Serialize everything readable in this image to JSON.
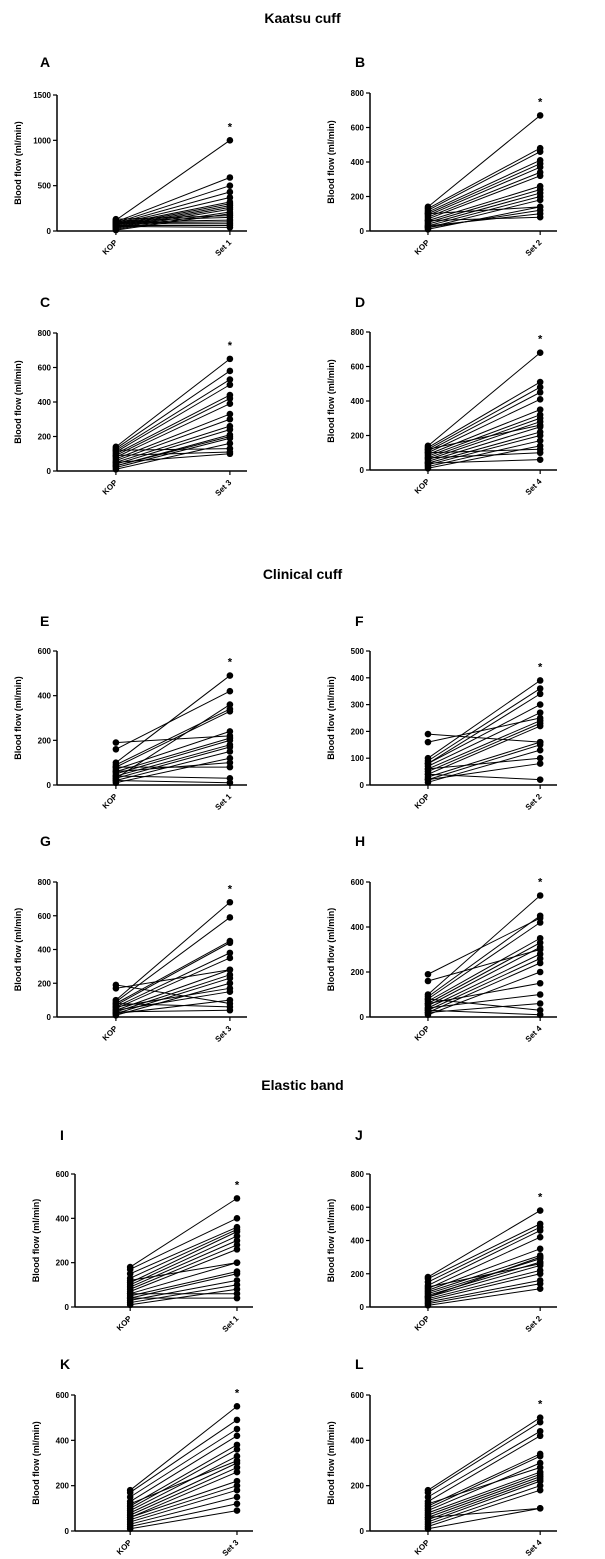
{
  "sections": [
    {
      "title": "Kaatsu cuff"
    },
    {
      "title": "Clinical cuff"
    },
    {
      "title": "Elastic band"
    }
  ],
  "chart_data": [
    {
      "panel": "A",
      "type": "line",
      "ylabel": "Blood flow (ml/min)",
      "categories": [
        "KOP",
        "Set 1"
      ],
      "ylim": [
        0,
        1500
      ],
      "yticks": [
        0,
        500,
        1000,
        1500
      ],
      "annotation": "*",
      "series": [
        [
          120,
          1000
        ],
        [
          100,
          590
        ],
        [
          90,
          500
        ],
        [
          80,
          430
        ],
        [
          75,
          370
        ],
        [
          70,
          320
        ],
        [
          60,
          300
        ],
        [
          50,
          280
        ],
        [
          40,
          260
        ],
        [
          30,
          240
        ],
        [
          20,
          210
        ],
        [
          10,
          190
        ],
        [
          130,
          170
        ],
        [
          110,
          150
        ],
        [
          100,
          120
        ],
        [
          90,
          100
        ],
        [
          80,
          80
        ],
        [
          60,
          60
        ],
        [
          50,
          40
        ]
      ]
    },
    {
      "panel": "B",
      "type": "line",
      "ylabel": "Blood flow (ml/min)",
      "categories": [
        "KOP",
        "Set 2"
      ],
      "ylim": [
        0,
        800
      ],
      "yticks": [
        0,
        200,
        400,
        600,
        800
      ],
      "annotation": "*",
      "series": [
        [
          140,
          670
        ],
        [
          130,
          480
        ],
        [
          120,
          460
        ],
        [
          110,
          410
        ],
        [
          100,
          390
        ],
        [
          90,
          370
        ],
        [
          80,
          340
        ],
        [
          70,
          320
        ],
        [
          60,
          260
        ],
        [
          50,
          240
        ],
        [
          40,
          220
        ],
        [
          30,
          200
        ],
        [
          20,
          180
        ],
        [
          10,
          140
        ],
        [
          20,
          120
        ],
        [
          30,
          100
        ],
        [
          60,
          80
        ],
        [
          100,
          140
        ]
      ]
    },
    {
      "panel": "C",
      "type": "line",
      "ylabel": "Blood flow (ml/min)",
      "categories": [
        "KOP",
        "Set 3"
      ],
      "ylim": [
        0,
        800
      ],
      "yticks": [
        0,
        200,
        400,
        600,
        800
      ],
      "annotation": "*",
      "series": [
        [
          140,
          650
        ],
        [
          130,
          580
        ],
        [
          120,
          530
        ],
        [
          110,
          500
        ],
        [
          100,
          440
        ],
        [
          90,
          420
        ],
        [
          80,
          390
        ],
        [
          70,
          330
        ],
        [
          60,
          300
        ],
        [
          50,
          260
        ],
        [
          40,
          240
        ],
        [
          30,
          210
        ],
        [
          20,
          190
        ],
        [
          10,
          160
        ],
        [
          120,
          130
        ],
        [
          90,
          110
        ],
        [
          50,
          100
        ],
        [
          30,
          200
        ]
      ]
    },
    {
      "panel": "D",
      "type": "line",
      "ylabel": "Blood flow (ml/min)",
      "categories": [
        "KOP",
        "Set 4"
      ],
      "ylim": [
        0,
        800
      ],
      "yticks": [
        0,
        200,
        400,
        600,
        800
      ],
      "annotation": "*",
      "series": [
        [
          140,
          680
        ],
        [
          130,
          510
        ],
        [
          120,
          480
        ],
        [
          110,
          450
        ],
        [
          100,
          410
        ],
        [
          90,
          350
        ],
        [
          80,
          320
        ],
        [
          70,
          300
        ],
        [
          60,
          280
        ],
        [
          50,
          250
        ],
        [
          40,
          220
        ],
        [
          30,
          200
        ],
        [
          20,
          170
        ],
        [
          10,
          140
        ],
        [
          100,
          120
        ],
        [
          70,
          100
        ],
        [
          40,
          60
        ],
        [
          120,
          260
        ]
      ]
    },
    {
      "panel": "E",
      "type": "line",
      "ylabel": "Blood flow (ml/min)",
      "categories": [
        "KOP",
        "Set 1"
      ],
      "ylim": [
        0,
        600
      ],
      "yticks": [
        0,
        200,
        400,
        600
      ],
      "annotation": "*",
      "series": [
        [
          190,
          220
        ],
        [
          160,
          420
        ],
        [
          100,
          490
        ],
        [
          90,
          340
        ],
        [
          80,
          330
        ],
        [
          70,
          240
        ],
        [
          60,
          210
        ],
        [
          50,
          200
        ],
        [
          40,
          180
        ],
        [
          30,
          170
        ],
        [
          20,
          150
        ],
        [
          10,
          120
        ],
        [
          60,
          100
        ],
        [
          40,
          30
        ],
        [
          20,
          10
        ],
        [
          80,
          80
        ],
        [
          30,
          360
        ]
      ]
    },
    {
      "panel": "F",
      "type": "line",
      "ylabel": "Blood flow (ml/min)",
      "categories": [
        "KOP",
        "Set 2"
      ],
      "ylim": [
        0,
        500
      ],
      "yticks": [
        0,
        100,
        200,
        300,
        400,
        500
      ],
      "annotation": "*",
      "series": [
        [
          190,
          160
        ],
        [
          160,
          250
        ],
        [
          100,
          390
        ],
        [
          90,
          360
        ],
        [
          80,
          340
        ],
        [
          70,
          270
        ],
        [
          60,
          240
        ],
        [
          50,
          230
        ],
        [
          40,
          220
        ],
        [
          30,
          160
        ],
        [
          20,
          150
        ],
        [
          10,
          130
        ],
        [
          60,
          100
        ],
        [
          40,
          20
        ],
        [
          20,
          80
        ],
        [
          80,
          300
        ]
      ]
    },
    {
      "panel": "G",
      "type": "line",
      "ylabel": "Blood flow (ml/min)",
      "categories": [
        "KOP",
        "Set 3"
      ],
      "ylim": [
        0,
        800
      ],
      "yticks": [
        0,
        200,
        400,
        600,
        800
      ],
      "annotation": "*",
      "series": [
        [
          190,
          80
        ],
        [
          170,
          280
        ],
        [
          100,
          680
        ],
        [
          90,
          590
        ],
        [
          80,
          450
        ],
        [
          70,
          440
        ],
        [
          60,
          380
        ],
        [
          50,
          350
        ],
        [
          40,
          280
        ],
        [
          30,
          250
        ],
        [
          20,
          230
        ],
        [
          10,
          200
        ],
        [
          60,
          170
        ],
        [
          40,
          150
        ],
        [
          20,
          100
        ],
        [
          80,
          60
        ],
        [
          30,
          40
        ]
      ]
    },
    {
      "panel": "H",
      "type": "line",
      "ylabel": "Blood flow (ml/min)",
      "categories": [
        "KOP",
        "Set 4"
      ],
      "ylim": [
        0,
        600
      ],
      "yticks": [
        0,
        200,
        400,
        600
      ],
      "annotation": "*",
      "series": [
        [
          190,
          440
        ],
        [
          160,
          300
        ],
        [
          100,
          540
        ],
        [
          90,
          450
        ],
        [
          80,
          420
        ],
        [
          70,
          350
        ],
        [
          60,
          330
        ],
        [
          50,
          310
        ],
        [
          40,
          280
        ],
        [
          30,
          260
        ],
        [
          20,
          240
        ],
        [
          10,
          200
        ],
        [
          60,
          150
        ],
        [
          40,
          100
        ],
        [
          20,
          60
        ],
        [
          80,
          30
        ],
        [
          30,
          10
        ]
      ]
    },
    {
      "panel": "I",
      "type": "line",
      "ylabel": "Blood flow (ml/min)",
      "categories": [
        "KOP",
        "Set 1"
      ],
      "ylim": [
        0,
        600
      ],
      "yticks": [
        0,
        200,
        400,
        600
      ],
      "annotation": "*",
      "series": [
        [
          180,
          490
        ],
        [
          170,
          400
        ],
        [
          150,
          360
        ],
        [
          130,
          350
        ],
        [
          110,
          340
        ],
        [
          100,
          320
        ],
        [
          90,
          300
        ],
        [
          80,
          280
        ],
        [
          70,
          260
        ],
        [
          60,
          200
        ],
        [
          50,
          160
        ],
        [
          40,
          150
        ],
        [
          30,
          120
        ],
        [
          20,
          100
        ],
        [
          10,
          80
        ],
        [
          60,
          60
        ],
        [
          40,
          40
        ],
        [
          120,
          200
        ]
      ]
    },
    {
      "panel": "J",
      "type": "line",
      "ylabel": "Blood flow (ml/min)",
      "categories": [
        "KOP",
        "Set 2"
      ],
      "ylim": [
        0,
        800
      ],
      "yticks": [
        0,
        200,
        400,
        600,
        800
      ],
      "annotation": "*",
      "series": [
        [
          180,
          580
        ],
        [
          170,
          500
        ],
        [
          150,
          480
        ],
        [
          130,
          460
        ],
        [
          110,
          420
        ],
        [
          100,
          350
        ],
        [
          90,
          310
        ],
        [
          80,
          290
        ],
        [
          70,
          270
        ],
        [
          60,
          250
        ],
        [
          50,
          220
        ],
        [
          40,
          200
        ],
        [
          30,
          160
        ],
        [
          20,
          140
        ],
        [
          10,
          110
        ],
        [
          60,
          300
        ],
        [
          120,
          260
        ]
      ]
    },
    {
      "panel": "K",
      "type": "line",
      "ylabel": "Blood flow (ml/min)",
      "categories": [
        "KOP",
        "Set 3"
      ],
      "ylim": [
        0,
        600
      ],
      "yticks": [
        0,
        200,
        400,
        600
      ],
      "annotation": "*",
      "series": [
        [
          180,
          550
        ],
        [
          170,
          490
        ],
        [
          150,
          450
        ],
        [
          130,
          420
        ],
        [
          110,
          380
        ],
        [
          100,
          360
        ],
        [
          90,
          330
        ],
        [
          80,
          300
        ],
        [
          70,
          280
        ],
        [
          60,
          220
        ],
        [
          50,
          200
        ],
        [
          40,
          180
        ],
        [
          30,
          150
        ],
        [
          20,
          120
        ],
        [
          10,
          90
        ],
        [
          60,
          260
        ],
        [
          120,
          310
        ]
      ]
    },
    {
      "panel": "L",
      "type": "line",
      "ylabel": "Blood flow (ml/min)",
      "categories": [
        "KOP",
        "Set 4"
      ],
      "ylim": [
        0,
        600
      ],
      "yticks": [
        0,
        200,
        400,
        600
      ],
      "annotation": "*",
      "series": [
        [
          180,
          500
        ],
        [
          170,
          480
        ],
        [
          150,
          440
        ],
        [
          130,
          420
        ],
        [
          110,
          340
        ],
        [
          100,
          330
        ],
        [
          90,
          300
        ],
        [
          80,
          260
        ],
        [
          70,
          250
        ],
        [
          60,
          240
        ],
        [
          50,
          230
        ],
        [
          40,
          220
        ],
        [
          30,
          200
        ],
        [
          20,
          180
        ],
        [
          10,
          100
        ],
        [
          60,
          100
        ],
        [
          120,
          280
        ]
      ]
    }
  ]
}
